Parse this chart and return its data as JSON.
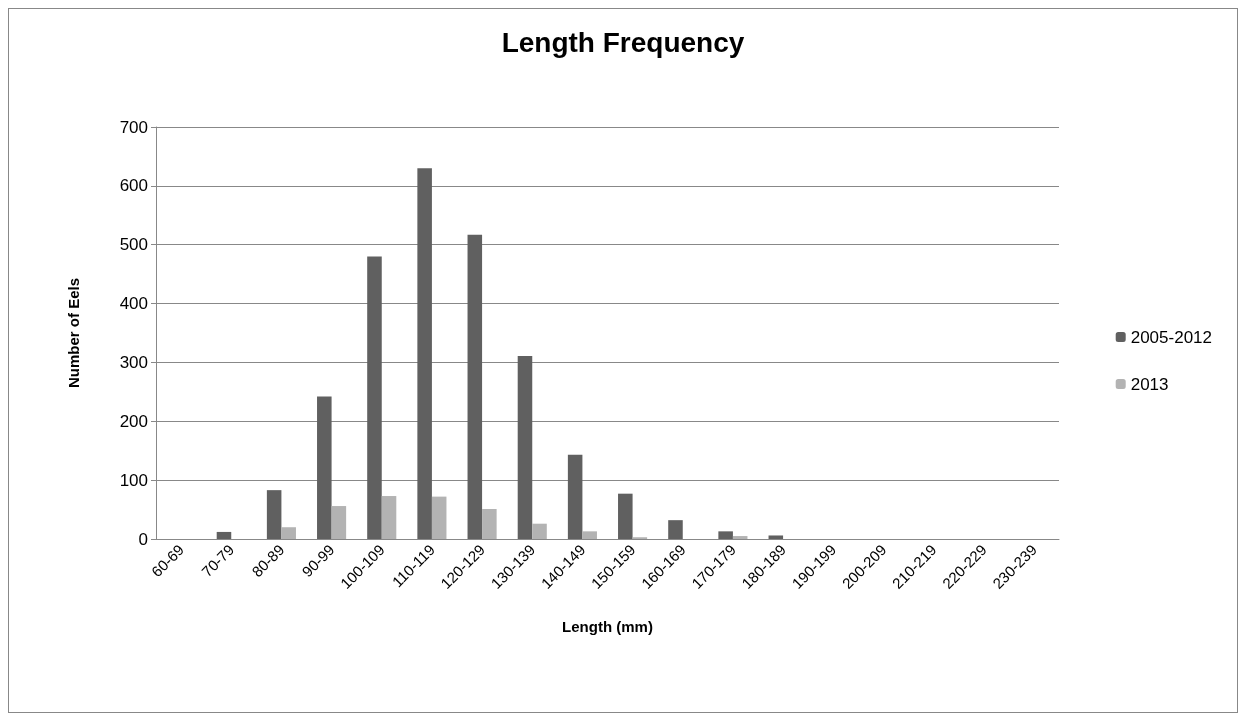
{
  "chart_data": {
    "type": "bar",
    "title": "Length Frequency",
    "xlabel": "Length (mm)",
    "ylabel": "Number of Eels",
    "categories": [
      "60-69",
      "70-79",
      "80-89",
      "90-99",
      "100-109",
      "110-119",
      "120-129",
      "130-139",
      "140-149",
      "150-159",
      "160-169",
      "170-179",
      "180-189",
      "190-199",
      "200-209",
      "210-219",
      "220-229",
      "230-239"
    ],
    "series": [
      {
        "name": "2005-2012",
        "color": "#606060",
        "values": [
          0,
          12,
          83,
          242,
          480,
          630,
          517,
          311,
          143,
          77,
          32,
          13,
          6,
          null,
          null,
          0,
          null,
          0
        ]
      },
      {
        "name": "2013",
        "color": "#b3b3b3",
        "values": [
          0,
          0,
          20,
          56,
          73,
          72,
          51,
          26,
          13,
          3,
          0,
          5,
          0,
          0,
          0,
          0,
          0,
          0
        ]
      }
    ],
    "ylim": [
      0,
      700
    ],
    "yticks": [
      0,
      100,
      200,
      300,
      400,
      500,
      600,
      700
    ],
    "grid": "y",
    "legend": "right"
  }
}
